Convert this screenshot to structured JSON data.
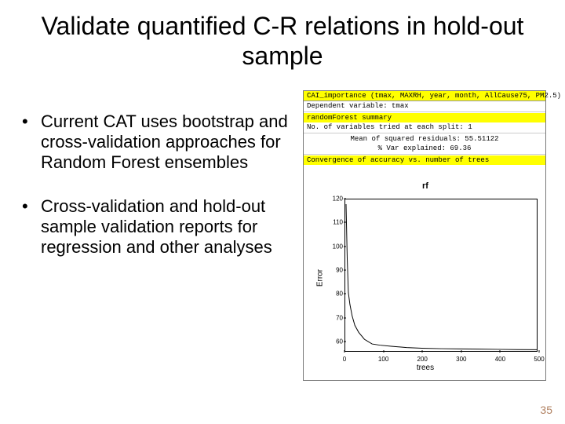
{
  "title": "Validate quantified C-R relations in hold-out sample",
  "bullets": [
    "Current CAT uses bootstrap and cross-validation approaches for Random Forest ensembles",
    "Cross-validation and hold-out sample validation reports for regression and other analyses"
  ],
  "panel": {
    "header_label": "CAI_importance (tmax, MAXRH, year, month, AllCause75, PM2.5)",
    "dep_var_label": "Dependent variable: tmax",
    "summary_label": "randomForest summary",
    "ntry_label": "No. of variables tried at each split: 1",
    "msr_label": "Mean of squared residuals: 55.51122",
    "varexp_label": "% Var explained: 69.36",
    "conv_label": "Convergence of accuracy vs. number of trees"
  },
  "chart": {
    "title": "rf",
    "xlabel": "trees",
    "ylabel": "Error",
    "xlim": [
      0,
      500
    ],
    "ylim": [
      55,
      120
    ],
    "xticks": [
      0,
      100,
      200,
      300,
      400,
      500
    ],
    "yticks": [
      60,
      70,
      80,
      90,
      100,
      110,
      120
    ],
    "line_color": "#000000",
    "line_width": 1,
    "background": "#ffffff",
    "points": [
      [
        2,
        118
      ],
      [
        5,
        95
      ],
      [
        8,
        80
      ],
      [
        12,
        75
      ],
      [
        18,
        70
      ],
      [
        25,
        66
      ],
      [
        35,
        63
      ],
      [
        50,
        60
      ],
      [
        70,
        58
      ],
      [
        90,
        57.5
      ],
      [
        120,
        57
      ],
      [
        160,
        56.5
      ],
      [
        200,
        56.2
      ],
      [
        250,
        56
      ],
      [
        300,
        55.9
      ],
      [
        350,
        55.8
      ],
      [
        400,
        55.7
      ],
      [
        450,
        55.6
      ],
      [
        500,
        55.55
      ]
    ]
  },
  "pagenum": "35",
  "colors": {
    "highlight": "#ffff00",
    "text": "#000000",
    "panel_border": "#7a7a7a",
    "pagenum": "#b08060"
  }
}
